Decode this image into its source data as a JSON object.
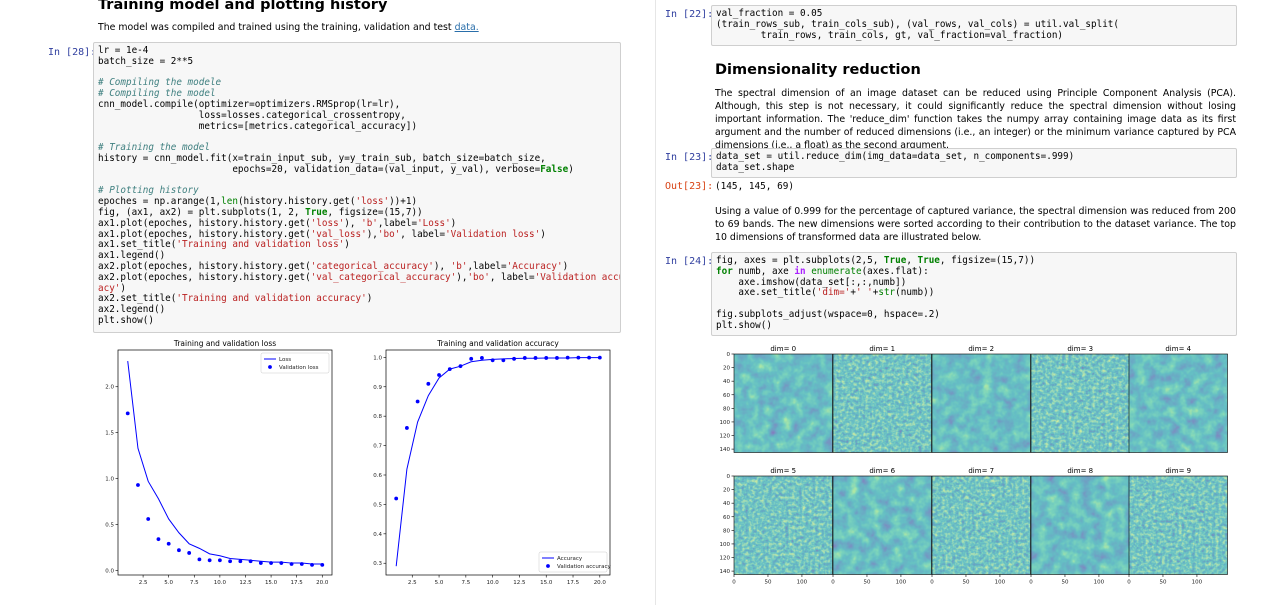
{
  "left": {
    "heading": "Training model and plotting history",
    "intro": "The model was compiled and trained using the training, validation and test ",
    "intro_link": "data.",
    "cell28": {
      "prompt": "In [28]:",
      "lines": [
        [
          [
            "",
            "lr = 1e-4"
          ]
        ],
        [
          [
            "",
            "batch_size = 2**5"
          ]
        ],
        [
          [
            "",
            ""
          ]
        ],
        [
          [
            "cm",
            "# Compiling the modele"
          ]
        ],
        [
          [
            "cm",
            "# Compiling the model"
          ]
        ],
        [
          [
            "",
            "cnn_model.compile(optimizer=optimizers.RMSprop(lr=lr),"
          ]
        ],
        [
          [
            "",
            "                  loss=losses.categorical_crossentropy,"
          ]
        ],
        [
          [
            "",
            "                  metrics=[metrics.categorical_accuracy])"
          ]
        ],
        [
          [
            "",
            ""
          ]
        ],
        [
          [
            "cm",
            "# Training the model"
          ]
        ],
        [
          [
            "",
            "history = cnn_model.fit(x=train_input_sub, y=y_train_sub, batch_size=batch_size,"
          ]
        ],
        [
          [
            "",
            "                        epochs=20, validation_data=(val_input, y_val), verbose="
          ],
          [
            "kw",
            "False"
          ],
          [
            "",
            ")"
          ]
        ],
        [
          [
            "",
            ""
          ]
        ],
        [
          [
            "cm",
            "# Plotting history"
          ]
        ],
        [
          [
            "",
            "epoches = np.arange(1,"
          ],
          [
            "nm",
            "len"
          ],
          [
            "",
            "(history.history.get("
          ],
          [
            "st",
            "'loss'"
          ],
          [
            "",
            "))+1)"
          ]
        ],
        [
          [
            "",
            "fig, (ax1, ax2) = plt.subplots(1, 2, "
          ],
          [
            "kw",
            "True"
          ],
          [
            "",
            ", figsize=(15,7))"
          ]
        ],
        [
          [
            "",
            "ax1.plot(epoches, history.history.get("
          ],
          [
            "st",
            "'loss'"
          ],
          [
            "",
            "), "
          ],
          [
            "st",
            "'b'"
          ],
          [
            "",
            ",label="
          ],
          [
            "st",
            "'Loss'"
          ],
          [
            "",
            ")"
          ]
        ],
        [
          [
            "",
            "ax1.plot(epoches, history.history.get("
          ],
          [
            "st",
            "'val_loss'"
          ],
          [
            "",
            "),"
          ],
          [
            "st",
            "'bo'"
          ],
          [
            "",
            ", label="
          ],
          [
            "st",
            "'Validation loss'"
          ],
          [
            "",
            ")"
          ]
        ],
        [
          [
            "",
            "ax1.set_title("
          ],
          [
            "st",
            "'Training and validation loss'"
          ],
          [
            "",
            ")"
          ]
        ],
        [
          [
            "",
            "ax1.legend()"
          ]
        ],
        [
          [
            "",
            "ax2.plot(epoches, history.history.get("
          ],
          [
            "st",
            "'categorical_accuracy'"
          ],
          [
            "",
            "), "
          ],
          [
            "st",
            "'b'"
          ],
          [
            "",
            ",label="
          ],
          [
            "st",
            "'Accuracy'"
          ],
          [
            "",
            ")"
          ]
        ],
        [
          [
            "",
            "ax2.plot(epoches, history.history.get("
          ],
          [
            "st",
            "'val_categorical_accuracy'"
          ],
          [
            "",
            "),"
          ],
          [
            "st",
            "'bo'"
          ],
          [
            "",
            ", label="
          ],
          [
            "st",
            "'Validation accur"
          ]
        ],
        [
          [
            "st",
            "acy'"
          ],
          [
            "",
            ")"
          ]
        ],
        [
          [
            "",
            "ax2.set_title("
          ],
          [
            "st",
            "'Training and validation accuracy'"
          ],
          [
            "",
            ")"
          ]
        ],
        [
          [
            "",
            "ax2.legend()"
          ]
        ],
        [
          [
            "",
            "plt.show()"
          ]
        ]
      ]
    }
  },
  "right": {
    "cell22": {
      "prompt": "In [22]:",
      "lines": [
        [
          [
            "",
            "val_fraction = 0.05"
          ]
        ],
        [
          [
            "",
            "(train_rows_sub, train_cols_sub), (val_rows, val_cols) = util.val_split("
          ]
        ],
        [
          [
            "",
            "        train_rows, train_cols, gt, val_fraction=val_fraction)"
          ]
        ]
      ]
    },
    "heading": "Dimensionality reduction",
    "para1": "The spectral dimension of an image dataset can be reduced using Principle Component Analysis (PCA). Although, this step is not necessary, it could significantly reduce the spectral dimension without losing important information. The 'reduce_dim' function takes the numpy array containing image data as its first argument and the number of reduced dimensions (i.e., an integer) or the minimum variance captured by PCA dimensions (i.e., a float) as the second argument.",
    "cell23": {
      "prompt": "In [23]:",
      "lines": [
        [
          [
            "",
            "data_set = util.reduce_dim(img_data=data_set, n_components=.999)"
          ]
        ],
        [
          [
            "",
            "data_set.shape"
          ]
        ]
      ]
    },
    "out23": {
      "prompt": "Out[23]:",
      "text": "(145, 145, 69)"
    },
    "para2": "Using a value of 0.999 for the percentage of captured variance, the spectral dimension was reduced from 200 to 69 bands. The new dimensions were sorted according to their contribution to the dataset variance. The top 10 dimensions of transformed data are illustrated below.",
    "cell24": {
      "prompt": "In [24]:",
      "lines": [
        [
          [
            "",
            "fig, axes = plt.subplots(2,5, "
          ],
          [
            "kw",
            "True"
          ],
          [
            "",
            ", "
          ],
          [
            "kw",
            "True"
          ],
          [
            "",
            ", figsize=(15,7))"
          ]
        ],
        [
          [
            "kw",
            "for"
          ],
          [
            "",
            " numb, axe "
          ],
          [
            "op",
            "in"
          ],
          [
            "",
            " "
          ],
          [
            "nm",
            "enumerate"
          ],
          [
            "",
            "(axes.flat):"
          ]
        ],
        [
          [
            "",
            "    axe.imshow(data_set[:,:,numb])"
          ]
        ],
        [
          [
            "",
            "    axe.set_title("
          ],
          [
            "st",
            "'dim='"
          ],
          [
            "",
            "+"
          ],
          [
            "st",
            "' '"
          ],
          [
            "",
            "+"
          ],
          [
            "nm",
            "str"
          ],
          [
            "",
            "(numb))"
          ]
        ],
        [
          [
            "",
            ""
          ]
        ],
        [
          [
            "",
            "fig.subplots_adjust(wspace=0, hspace=.2)"
          ]
        ],
        [
          [
            "",
            "plt.show()"
          ]
        ]
      ]
    },
    "dims": {
      "titles": [
        "dim= 0",
        "dim= 1",
        "dim= 2",
        "dim= 3",
        "dim= 4",
        "dim= 5",
        "dim= 6",
        "dim= 7",
        "dim= 8",
        "dim= 9"
      ],
      "y_ticks": [
        "0",
        "20",
        "40",
        "60",
        "80",
        "100",
        "120",
        "140"
      ],
      "x_ticks": [
        "0",
        "50",
        "100"
      ]
    }
  },
  "colors": {
    "series": "#0000ff",
    "prompt_in": "#303f9f",
    "prompt_out": "#d84315",
    "link": "#296eaa"
  },
  "chart_data": [
    {
      "type": "line",
      "title": "Training and validation loss",
      "xlabel": "",
      "ylabel": "",
      "x": [
        1,
        2,
        3,
        4,
        5,
        6,
        7,
        8,
        9,
        10,
        11,
        12,
        13,
        14,
        15,
        16,
        17,
        18,
        19,
        20
      ],
      "series": [
        {
          "name": "Loss",
          "style": "line",
          "values": [
            2.28,
            1.33,
            0.97,
            0.78,
            0.56,
            0.41,
            0.29,
            0.24,
            0.18,
            0.16,
            0.13,
            0.12,
            0.11,
            0.1,
            0.09,
            0.09,
            0.08,
            0.08,
            0.07,
            0.07
          ]
        },
        {
          "name": "Validation loss",
          "style": "points",
          "values": [
            1.71,
            0.93,
            0.56,
            0.34,
            0.29,
            0.22,
            0.19,
            0.12,
            0.11,
            0.11,
            0.1,
            0.1,
            0.1,
            0.08,
            0.08,
            0.08,
            0.07,
            0.07,
            0.06,
            0.06
          ]
        }
      ],
      "xticks": [
        2.5,
        5.0,
        7.5,
        10.0,
        12.5,
        15.0,
        17.5,
        20.0
      ],
      "yticks": [
        0.0,
        0.5,
        1.0,
        1.5,
        2.0
      ],
      "xlim": [
        0.05,
        20.95
      ],
      "ylim": [
        -0.05,
        2.4
      ],
      "legend": "top-right",
      "grid": false
    },
    {
      "type": "line",
      "title": "Training and validation accuracy",
      "xlabel": "",
      "ylabel": "",
      "x": [
        1,
        2,
        3,
        4,
        5,
        6,
        7,
        8,
        9,
        10,
        11,
        12,
        13,
        14,
        15,
        16,
        17,
        18,
        19,
        20
      ],
      "series": [
        {
          "name": "Accuracy",
          "style": "line",
          "values": [
            0.29,
            0.62,
            0.78,
            0.87,
            0.93,
            0.96,
            0.97,
            0.985,
            0.99,
            0.993,
            0.995,
            0.996,
            0.997,
            0.997,
            0.998,
            0.998,
            0.998,
            0.999,
            0.999,
            0.999
          ]
        },
        {
          "name": "Validation accuracy",
          "style": "points",
          "values": [
            0.52,
            0.76,
            0.85,
            0.91,
            0.94,
            0.96,
            0.97,
            0.995,
            0.998,
            0.99,
            0.99,
            0.995,
            0.998,
            0.998,
            0.998,
            0.998,
            0.999,
            0.999,
            0.999,
            0.999
          ]
        }
      ],
      "xticks": [
        2.5,
        5.0,
        7.5,
        10.0,
        12.5,
        15.0,
        17.5,
        20.0
      ],
      "yticks": [
        0.3,
        0.4,
        0.5,
        0.6,
        0.7,
        0.8,
        0.9,
        1.0
      ],
      "xlim": [
        0.05,
        20.95
      ],
      "ylim": [
        0.26,
        1.025
      ],
      "legend": "bottom-right",
      "grid": false
    }
  ]
}
